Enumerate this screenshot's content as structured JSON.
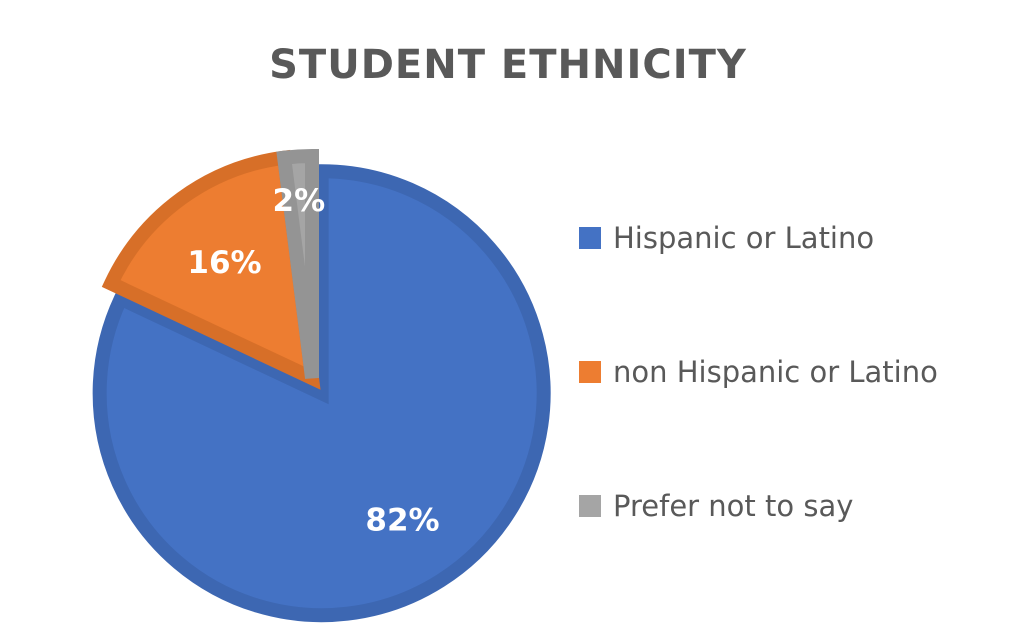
{
  "chart_data": {
    "type": "pie",
    "title": "STUDENT ETHNICITY",
    "categories": [
      "Hispanic or Latino",
      "non Hispanic or Latino",
      "Prefer not to say"
    ],
    "values": [
      82,
      16,
      2
    ],
    "data_labels": [
      "82%",
      "16%",
      "2%"
    ],
    "colors": [
      "#4472C4",
      "#ED7D31",
      "#A5A5A5"
    ],
    "border_colors": [
      "#3D67B2",
      "#D76F28",
      "#949494"
    ],
    "exploded": "Hispanic or Latino",
    "legend": "right",
    "start_angle": "12 o'clock, clockwise"
  }
}
